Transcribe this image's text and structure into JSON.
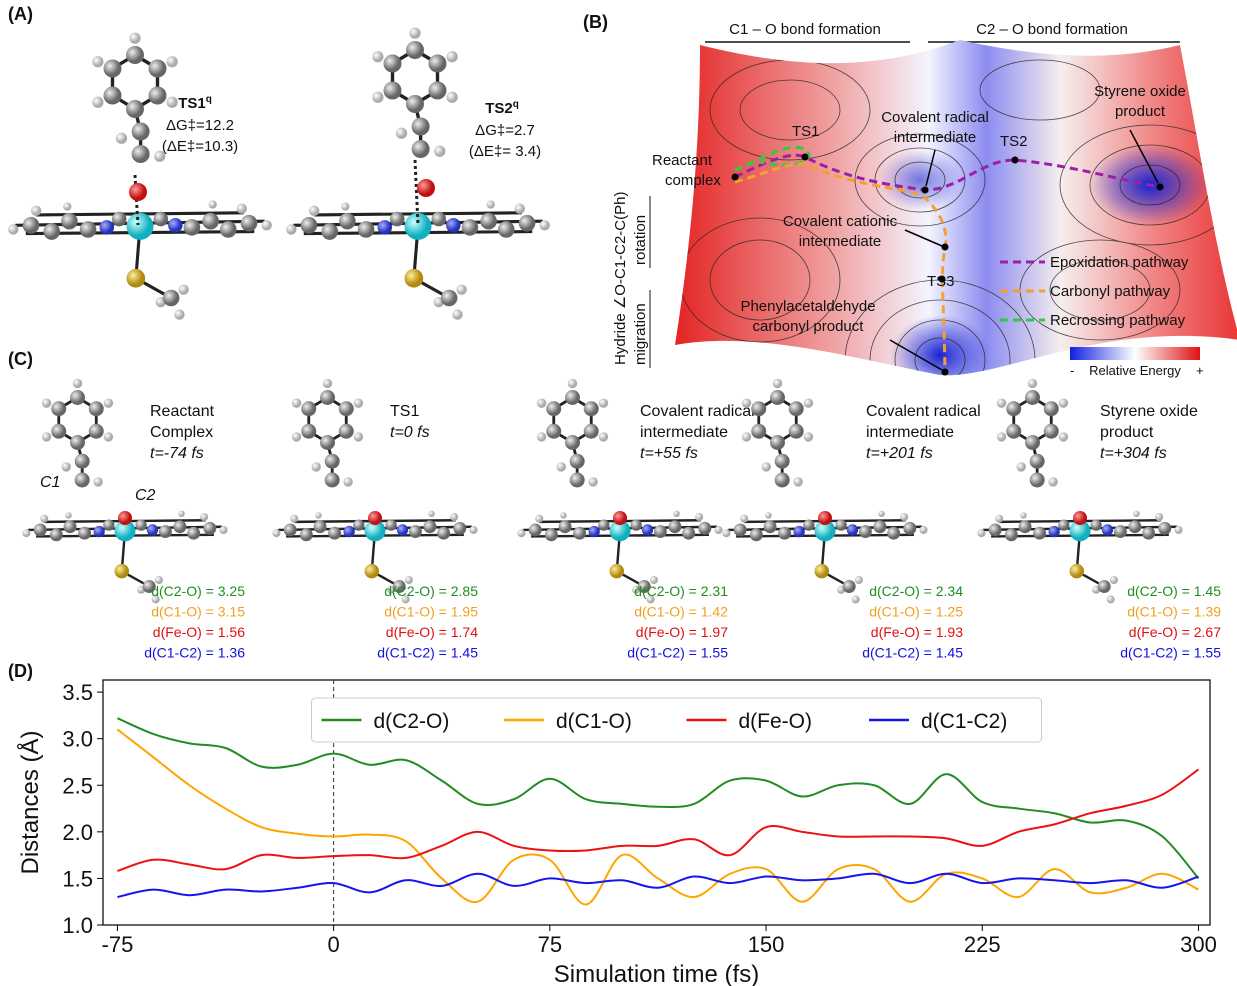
{
  "figure": {
    "panel_a": {
      "label": "(A)",
      "ts1": {
        "name": "TS1",
        "sup": "q",
        "dg": "ΔG‡=12.2",
        "de": "(ΔE‡=10.3)"
      },
      "ts2": {
        "name": "TS2",
        "sup": "q",
        "dg": "ΔG‡=2.7",
        "de": "(ΔE‡= 3.4)"
      }
    },
    "panel_b": {
      "label": "(B)",
      "header_left": "C1 – O bond formation",
      "header_right": "C2 – O bond formation",
      "axis_main": "Hydride ∠O-C1-C2-C(Ph)",
      "axis_rotation": "rotation",
      "axis_migration": "migration",
      "reactant": [
        "Reactant",
        "complex"
      ],
      "ts1": "TS1",
      "ts2": "TS2",
      "ts3": "TS3",
      "radical": [
        "Covalent radical",
        "intermediate"
      ],
      "styrene": [
        "Styrene oxide",
        "product"
      ],
      "cationic": [
        "Covalent cationic",
        "intermediate"
      ],
      "carbonyl": [
        "Phenylacetaldehyde",
        "carbonyl product"
      ],
      "legend": [
        "Epoxidation pathway",
        "Carbonyl pathway",
        "Recrossing pathway"
      ],
      "colorbar": {
        "minus": "-",
        "label": "Relative Energy",
        "plus": "+"
      }
    },
    "panel_c": {
      "label": "(C)",
      "c1": "C1",
      "c2": "C2",
      "structures": [
        {
          "title": [
            "Reactant",
            "Complex"
          ],
          "time": "t=-74 fs",
          "distances": [
            "d(C2-O) = 3.25",
            "d(C1-O) = 3.15",
            "d(Fe-O) = 1.56",
            "d(C1-C2) = 1.36"
          ]
        },
        {
          "title": [
            "TS1"
          ],
          "time": "t=0 fs",
          "distances": [
            "d(C2-O) = 2.85",
            "d(C1-O) = 1.95",
            "d(Fe-O) = 1.74",
            "d(C1-C2) = 1.45"
          ]
        },
        {
          "title": [
            "Covalent radical",
            "intermediate"
          ],
          "time": "t=+55 fs",
          "distances": [
            "d(C2-O) = 2.31",
            "d(C1-O) = 1.42",
            "d(Fe-O) = 1.97",
            "d(C1-C2) = 1.55"
          ]
        },
        {
          "title": [
            "Covalent radical",
            "intermediate"
          ],
          "time": "t=+201 fs",
          "distances": [
            "d(C2-O) = 2.34",
            "d(C1-O) = 1.25",
            "d(Fe-O) = 1.93",
            "d(C1-C2) = 1.45"
          ]
        },
        {
          "title": [
            "Styrene oxide",
            "product"
          ],
          "time": "t=+304 fs",
          "distances": [
            "d(C2-O) = 1.45",
            "d(C1-O) = 1.39",
            "d(Fe-O) = 2.67",
            "d(C1-C2) = 1.55"
          ]
        }
      ]
    },
    "panel_d": {
      "label": "(D)"
    }
  },
  "chart_data": {
    "type": "line",
    "xlabel": "Simulation time (fs)",
    "ylabel": "Distances (Å)",
    "x": [
      -75,
      -62.5,
      -50,
      -37.5,
      -25,
      -12.5,
      0,
      12.5,
      25,
      37.5,
      50,
      62.5,
      75,
      87.5,
      100,
      112.5,
      125,
      137.5,
      150,
      162.5,
      175,
      187.5,
      200,
      212.5,
      225,
      237.5,
      250,
      262.5,
      275,
      287.5,
      300
    ],
    "series": [
      {
        "name": "d(C2-O)",
        "color": "#228b22",
        "values": [
          3.22,
          3.05,
          2.95,
          2.9,
          2.7,
          2.72,
          2.84,
          2.72,
          2.77,
          2.55,
          2.3,
          2.35,
          2.57,
          2.35,
          2.3,
          2.27,
          2.3,
          2.55,
          2.55,
          2.38,
          2.5,
          2.5,
          2.3,
          2.62,
          2.32,
          2.25,
          2.2,
          2.1,
          2.12,
          1.95,
          1.5
        ]
      },
      {
        "name": "d(C1-O)",
        "color": "#ffa500",
        "values": [
          3.1,
          2.8,
          2.5,
          2.25,
          2.05,
          1.98,
          1.95,
          1.97,
          1.9,
          1.5,
          1.25,
          1.7,
          1.7,
          1.22,
          1.75,
          1.5,
          1.3,
          1.55,
          1.6,
          1.25,
          1.6,
          1.6,
          1.25,
          1.55,
          1.5,
          1.3,
          1.6,
          1.35,
          1.4,
          1.55,
          1.38
        ]
      },
      {
        "name": "d(Fe-O)",
        "color": "#ee1111",
        "values": [
          1.58,
          1.7,
          1.65,
          1.6,
          1.75,
          1.72,
          1.74,
          1.75,
          1.72,
          1.85,
          2.0,
          1.85,
          1.8,
          1.8,
          1.85,
          1.85,
          1.92,
          1.75,
          2.05,
          2.0,
          1.95,
          1.95,
          1.95,
          1.93,
          1.85,
          2.0,
          2.08,
          2.2,
          2.28,
          2.4,
          2.67
        ]
      },
      {
        "name": "d(C1-C2)",
        "color": "#1515ee",
        "values": [
          1.3,
          1.38,
          1.32,
          1.38,
          1.36,
          1.4,
          1.45,
          1.35,
          1.48,
          1.42,
          1.55,
          1.42,
          1.5,
          1.45,
          1.48,
          1.4,
          1.52,
          1.45,
          1.52,
          1.48,
          1.5,
          1.55,
          1.45,
          1.55,
          1.45,
          1.5,
          1.48,
          1.45,
          1.48,
          1.4,
          1.52
        ]
      }
    ],
    "xlim": [
      -80,
      304
    ],
    "xticks": [
      -75,
      0,
      75,
      150,
      225,
      300
    ],
    "ylim": [
      1.0,
      3.63
    ],
    "yticks": [
      {
        "value": 1,
        "label": "1.0"
      },
      1.5,
      {
        "value": 2,
        "label": "2.0"
      },
      2.5,
      {
        "value": 3,
        "label": "3.0"
      },
      3.5
    ],
    "vlines": [
      0
    ],
    "legend": "upper center"
  }
}
